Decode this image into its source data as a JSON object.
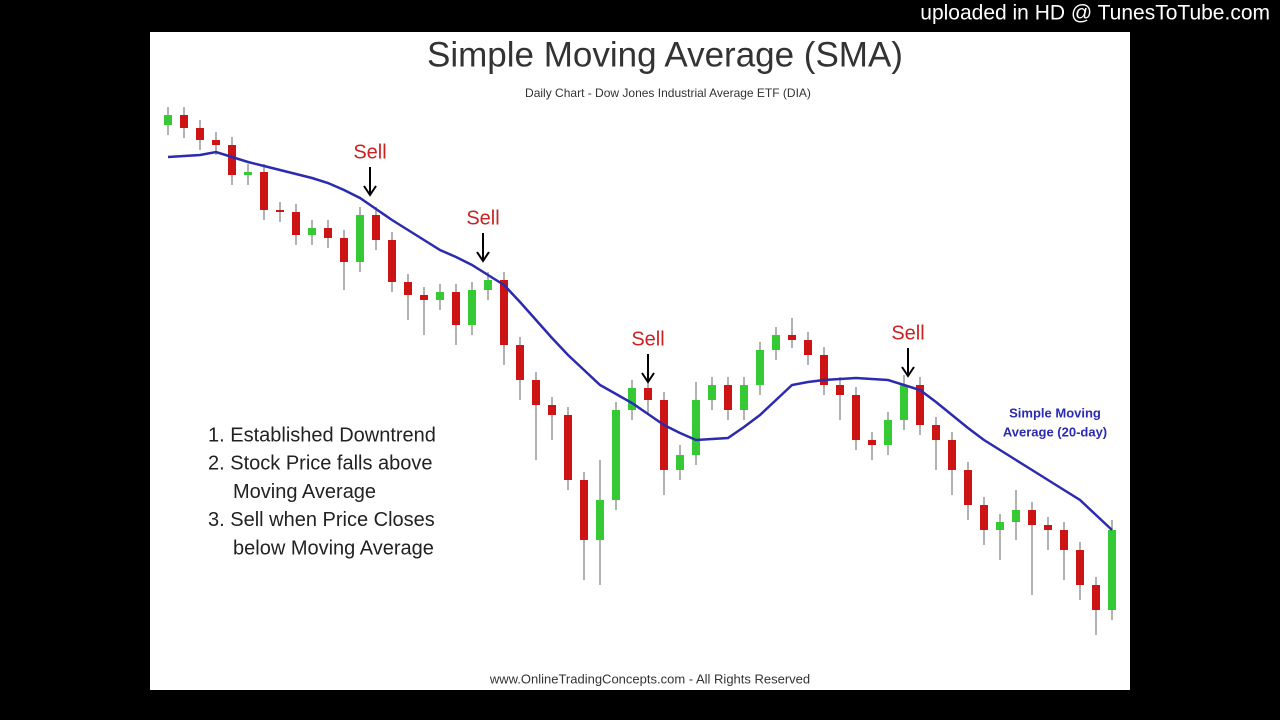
{
  "overlay_text": "uploaded in HD @ TunesToTube.com",
  "chart_data": {
    "type": "candlestick",
    "title": "Simple Moving Average (SMA)",
    "subtitle": "Daily Chart - Dow Jones Industrial Average ETF (DIA)",
    "categories": [
      null,
      null,
      null,
      null,
      null,
      null,
      null,
      null,
      null,
      null,
      null,
      null,
      null,
      null,
      null,
      null,
      null,
      null,
      null,
      null,
      null,
      null,
      null,
      null,
      null,
      null,
      null,
      null,
      null,
      null,
      null,
      null,
      null,
      null,
      null,
      null,
      null,
      null,
      null,
      null,
      null,
      null,
      null,
      null,
      null,
      null,
      null,
      null,
      null,
      null,
      null,
      null,
      null,
      null,
      null,
      null,
      null,
      null,
      null,
      null
    ],
    "ylim": [
      0,
      540
    ],
    "candles": {
      "up_color": "#35c935",
      "down_color": "#cc1414",
      "open": [
        515,
        525,
        512,
        500,
        495,
        465,
        468,
        430,
        428,
        405,
        412,
        402,
        378,
        425,
        400,
        358,
        345,
        340,
        348,
        315,
        350,
        360,
        295,
        260,
        235,
        225,
        160,
        100,
        140,
        230,
        252,
        240,
        170,
        185,
        240,
        255,
        230,
        255,
        290,
        305,
        300,
        285,
        255,
        245,
        200,
        195,
        220,
        255,
        215,
        200,
        170,
        135,
        110,
        118,
        130,
        115,
        110,
        90,
        55,
        30
      ],
      "high": [
        533,
        533,
        520,
        508,
        503,
        476,
        476,
        438,
        436,
        420,
        420,
        410,
        433,
        433,
        408,
        366,
        353,
        356,
        356,
        358,
        368,
        368,
        303,
        268,
        243,
        233,
        168,
        180,
        238,
        260,
        262,
        248,
        195,
        258,
        263,
        263,
        263,
        298,
        313,
        322,
        308,
        293,
        263,
        253,
        208,
        228,
        265,
        263,
        223,
        208,
        178,
        143,
        126,
        150,
        138,
        123,
        118,
        98,
        63,
        120
      ],
      "low": [
        505,
        502,
        490,
        485,
        455,
        455,
        420,
        418,
        395,
        395,
        392,
        350,
        368,
        390,
        348,
        320,
        305,
        330,
        295,
        305,
        340,
        275,
        240,
        180,
        200,
        150,
        60,
        55,
        130,
        220,
        225,
        145,
        160,
        175,
        230,
        220,
        220,
        245,
        280,
        292,
        275,
        245,
        220,
        190,
        180,
        185,
        210,
        205,
        170,
        145,
        120,
        95,
        80,
        100,
        45,
        90,
        60,
        40,
        5,
        20
      ],
      "close": [
        525,
        512,
        500,
        495,
        465,
        468,
        430,
        428,
        405,
        412,
        402,
        378,
        425,
        400,
        358,
        345,
        340,
        348,
        315,
        350,
        360,
        295,
        260,
        235,
        225,
        160,
        100,
        140,
        230,
        252,
        240,
        170,
        185,
        240,
        255,
        230,
        255,
        290,
        305,
        300,
        285,
        255,
        245,
        200,
        195,
        220,
        255,
        215,
        200,
        170,
        135,
        110,
        118,
        130,
        115,
        110,
        90,
        55,
        30,
        110
      ]
    },
    "sma": {
      "label": [
        "Simple Moving",
        "Average (20-day)"
      ],
      "color": "#2b2bb0",
      "values": [
        483,
        484,
        485,
        488,
        483,
        478,
        474,
        470,
        466,
        462,
        457,
        450,
        442,
        431,
        420,
        410,
        400,
        390,
        383,
        375,
        365,
        355,
        338,
        320,
        302,
        285,
        270,
        255,
        246,
        237,
        226,
        215,
        207,
        200,
        201,
        202,
        213,
        225,
        240,
        255,
        258,
        260,
        261,
        262,
        261,
        260,
        255,
        250,
        238,
        225,
        212,
        200,
        190,
        180,
        170,
        160,
        150,
        140,
        125,
        110
      ]
    },
    "annotations": [
      "Sell",
      "Sell",
      "Sell",
      "Sell"
    ],
    "notes": [
      "1. Established Downtrend",
      "2. Stock Price falls above",
      "Moving Average",
      "3. Sell when Price Closes",
      "below Moving Average"
    ],
    "footer": "www.OnlineTradingConcepts.com - All Rights Reserved"
  }
}
